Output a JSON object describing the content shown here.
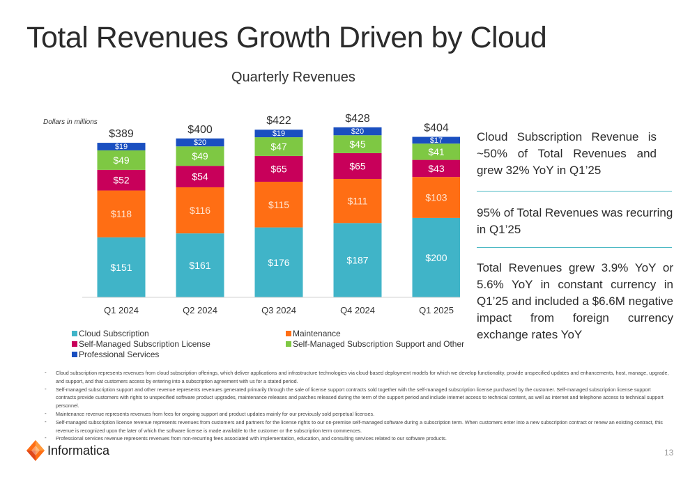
{
  "page": {
    "title": "Total Revenues Growth Driven by Cloud",
    "units_note": "Dollars in millions",
    "page_number": "13",
    "logo_text": "Informatica"
  },
  "right_panel": {
    "points": [
      "Cloud Subscription Revenue is ~50% of Total Revenues and grew 32% YoY in Q1’25",
      "95% of Total Revenues was recurring in Q1’25",
      "Total Revenues grew 3.9% YoY or 5.6% YoY in constant currency in Q1’25 and included a $6.6M negative impact from foreign currency exchange rates YoY"
    ],
    "divider_color": "#4bb8c3"
  },
  "footnotes": [
    "Cloud subscription represents revenues from cloud subscription offerings, which deliver applications and infrastructure technologies via cloud-based deployment models for which we develop functionality, provide unspecified updates and enhancements, host, manage, upgrade, and support, and that customers access by entering into a subscription agreement with us for a stated period.",
    "Self-managed subscription support and other revenue represents revenues generated primarily through the sale of license support contracts sold together with the self-managed subscription license purchased by the customer. Self-managed subscription license support contracts provide customers with rights to unspecified software product upgrades, maintenance releases and patches released during the term of the support period and include internet access to technical content, as well as internet and telephone access to technical support personnel.",
    "Maintenance revenue represents revenues from fees for ongoing support and product updates mainly for our previously sold perpetual licenses.",
    "Self-managed subscription license revenue represents revenues from customers and partners for the license rights to our on-premise self-managed software during a subscription term.  When customers enter into a new subscription contract or renew an existing contract, this revenue is recognized upon the later of which the software license is made available to the customer or the subscription term commences.",
    "Professional services revenue represents revenues from non-recurring fees associated with implementation, education, and consulting services related to our software products."
  ],
  "chart_data": {
    "type": "bar",
    "stacked": true,
    "title": "Quarterly Revenues",
    "xlabel": "",
    "ylabel": "",
    "categories": [
      "Q1 2024",
      "Q2 2024",
      "Q3 2024",
      "Q4 2024",
      "Q1 2025"
    ],
    "totals": [
      "$389",
      "$400",
      "$422",
      "$428",
      "$404"
    ],
    "ylim": [
      0,
      430
    ],
    "grid": false,
    "legend_position": "bottom",
    "series": [
      {
        "name": "Cloud Subscription",
        "color": "#40b4c8",
        "values": [
          151,
          161,
          176,
          187,
          200
        ],
        "labels": [
          "$151",
          "$161",
          "$176",
          "$187",
          "$200"
        ]
      },
      {
        "name": "Maintenance",
        "color": "#ff6e14",
        "values": [
          118,
          116,
          115,
          111,
          103
        ],
        "labels": [
          "$118",
          "$116",
          "$115",
          "$111",
          "$103"
        ]
      },
      {
        "name": "Self-Managed Subscription License",
        "color": "#c8005a",
        "values": [
          52,
          54,
          65,
          65,
          43
        ],
        "labels": [
          "$52",
          "$54",
          "$65",
          "$65",
          "$43"
        ]
      },
      {
        "name": "Self-Managed Subscription Support and Other",
        "color": "#7ec843",
        "values": [
          49,
          49,
          47,
          45,
          41
        ],
        "labels": [
          "$49",
          "$49",
          "$47",
          "$45",
          "$41"
        ]
      },
      {
        "name": "Professional Services",
        "color": "#1a4fc0",
        "values": [
          19,
          20,
          19,
          20,
          17
        ],
        "labels": [
          "$19",
          "$20",
          "$19",
          "$20",
          "$17"
        ]
      }
    ]
  }
}
